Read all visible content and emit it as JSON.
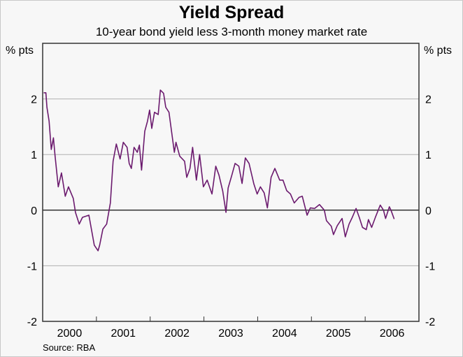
{
  "chart_data": {
    "type": "line",
    "title": "Yield Spread",
    "subtitle": "10-year bond yield less 3-month money market rate",
    "ylabel_left": "% pts",
    "ylabel_right": "% pts",
    "source": "Source: RBA",
    "xlim": [
      2000,
      2007
    ],
    "ylim": [
      -2,
      3
    ],
    "yticks": [
      -2,
      -1,
      0,
      1,
      2
    ],
    "xtick_labels": [
      "2000",
      "2001",
      "2002",
      "2003",
      "2004",
      "2005",
      "2006"
    ],
    "grid": true,
    "line_color": "#6b1a6e",
    "series": [
      {
        "points": [
          [
            2000.02,
            2.11
          ],
          [
            2000.06,
            2.11
          ],
          [
            2000.08,
            1.85
          ],
          [
            2000.12,
            1.6
          ],
          [
            2000.16,
            1.09
          ],
          [
            2000.2,
            1.3
          ],
          [
            2000.23,
            0.98
          ],
          [
            2000.29,
            0.42
          ],
          [
            2000.35,
            0.67
          ],
          [
            2000.42,
            0.25
          ],
          [
            2000.48,
            0.42
          ],
          [
            2000.57,
            0.21
          ],
          [
            2000.61,
            -0.04
          ],
          [
            2000.68,
            -0.25
          ],
          [
            2000.74,
            -0.13
          ],
          [
            2000.86,
            -0.09
          ],
          [
            2000.96,
            -0.63
          ],
          [
            2001.03,
            -0.73
          ],
          [
            2001.06,
            -0.63
          ],
          [
            2001.12,
            -0.34
          ],
          [
            2001.19,
            -0.25
          ],
          [
            2001.26,
            0.13
          ],
          [
            2001.31,
            0.88
          ],
          [
            2001.37,
            1.19
          ],
          [
            2001.44,
            0.92
          ],
          [
            2001.5,
            1.22
          ],
          [
            2001.57,
            1.13
          ],
          [
            2001.61,
            0.84
          ],
          [
            2001.65,
            0.75
          ],
          [
            2001.7,
            1.13
          ],
          [
            2001.76,
            1.04
          ],
          [
            2001.8,
            1.17
          ],
          [
            2001.84,
            0.72
          ],
          [
            2001.9,
            1.42
          ],
          [
            2001.95,
            1.6
          ],
          [
            2001.99,
            1.8
          ],
          [
            2002.03,
            1.47
          ],
          [
            2002.08,
            1.76
          ],
          [
            2002.15,
            1.72
          ],
          [
            2002.19,
            2.16
          ],
          [
            2002.25,
            2.1
          ],
          [
            2002.29,
            1.85
          ],
          [
            2002.35,
            1.76
          ],
          [
            2002.45,
            1.04
          ],
          [
            2002.48,
            1.22
          ],
          [
            2002.55,
            0.97
          ],
          [
            2002.64,
            0.88
          ],
          [
            2002.68,
            0.59
          ],
          [
            2002.74,
            0.75
          ],
          [
            2002.79,
            1.13
          ],
          [
            2002.86,
            0.54
          ],
          [
            2002.92,
            1.0
          ],
          [
            2002.99,
            0.42
          ],
          [
            2003.06,
            0.54
          ],
          [
            2003.15,
            0.29
          ],
          [
            2003.22,
            0.79
          ],
          [
            2003.28,
            0.63
          ],
          [
            2003.35,
            0.34
          ],
          [
            2003.41,
            -0.04
          ],
          [
            2003.45,
            0.4
          ],
          [
            2003.52,
            0.63
          ],
          [
            2003.58,
            0.84
          ],
          [
            2003.65,
            0.79
          ],
          [
            2003.71,
            0.48
          ],
          [
            2003.77,
            0.94
          ],
          [
            2003.84,
            0.84
          ],
          [
            2003.93,
            0.47
          ],
          [
            2003.99,
            0.29
          ],
          [
            2004.05,
            0.42
          ],
          [
            2004.12,
            0.31
          ],
          [
            2004.18,
            0.04
          ],
          [
            2004.25,
            0.59
          ],
          [
            2004.32,
            0.75
          ],
          [
            2004.41,
            0.54
          ],
          [
            2004.47,
            0.54
          ],
          [
            2004.54,
            0.35
          ],
          [
            2004.61,
            0.29
          ],
          [
            2004.68,
            0.13
          ],
          [
            2004.77,
            0.23
          ],
          [
            2004.83,
            0.25
          ],
          [
            2004.92,
            -0.09
          ],
          [
            2004.98,
            0.04
          ],
          [
            2005.06,
            0.03
          ],
          [
            2005.15,
            0.1
          ],
          [
            2005.24,
            0.0
          ],
          [
            2005.28,
            -0.19
          ],
          [
            2005.37,
            -0.29
          ],
          [
            2005.41,
            -0.44
          ],
          [
            2005.48,
            -0.28
          ],
          [
            2005.57,
            -0.15
          ],
          [
            2005.63,
            -0.48
          ],
          [
            2005.7,
            -0.25
          ],
          [
            2005.76,
            -0.13
          ],
          [
            2005.83,
            0.03
          ],
          [
            2005.89,
            -0.13
          ],
          [
            2005.95,
            -0.31
          ],
          [
            2006.02,
            -0.35
          ],
          [
            2006.06,
            -0.17
          ],
          [
            2006.12,
            -0.31
          ],
          [
            2006.19,
            -0.13
          ],
          [
            2006.28,
            0.09
          ],
          [
            2006.34,
            0.0
          ],
          [
            2006.38,
            -0.15
          ],
          [
            2006.45,
            0.06
          ],
          [
            2006.48,
            0.0
          ],
          [
            2006.54,
            -0.16
          ]
        ]
      }
    ]
  }
}
